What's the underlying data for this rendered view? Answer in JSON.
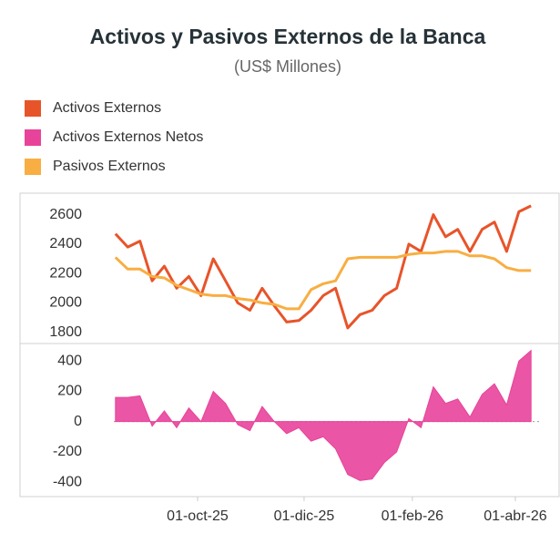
{
  "chart_data": {
    "type": "line",
    "title": "Activos y Pasivos Externos de la Banca",
    "subtitle": "(US$ Millones)",
    "x": [
      "2025-08-15",
      "2025-08-22",
      "2025-08-29",
      "2025-09-05",
      "2025-09-12",
      "2025-09-19",
      "2025-09-26",
      "2025-10-03",
      "2025-10-10",
      "2025-10-17",
      "2025-10-24",
      "2025-10-31",
      "2025-11-07",
      "2025-11-14",
      "2025-11-21",
      "2025-11-28",
      "2025-12-05",
      "2025-12-12",
      "2025-12-19",
      "2025-12-26",
      "2026-01-02",
      "2026-01-09",
      "2026-01-16",
      "2026-01-23",
      "2026-01-30",
      "2026-02-06",
      "2026-02-13",
      "2026-02-20",
      "2026-02-27",
      "2026-03-06",
      "2026-03-13",
      "2026-03-20",
      "2026-03-27",
      "2026-04-03",
      "2026-04-10"
    ],
    "series": [
      {
        "name": "Activos Externos",
        "color": "#e8542a",
        "values": [
          2470,
          2380,
          2420,
          2150,
          2250,
          2100,
          2180,
          2050,
          2300,
          2150,
          2000,
          1950,
          2100,
          1980,
          1870,
          1880,
          1950,
          2050,
          2100,
          1830,
          1920,
          1950,
          2050,
          2100,
          2400,
          2350,
          2600,
          2450,
          2500,
          2350,
          2500,
          2550,
          2350,
          2620,
          2660
        ]
      },
      {
        "name": "Activos Externos Netos",
        "color": "#e8439b",
        "axis": "y2",
        "values": [
          160,
          160,
          170,
          -30,
          70,
          -40,
          90,
          0,
          200,
          120,
          -20,
          -60,
          100,
          0,
          -80,
          -40,
          -130,
          -100,
          -180,
          -350,
          -390,
          -380,
          -270,
          -200,
          20,
          -40,
          230,
          120,
          150,
          30,
          180,
          250,
          110,
          400,
          470
        ]
      },
      {
        "name": "Pasivos Externos",
        "color": "#f8ae42",
        "values": [
          2310,
          2230,
          2230,
          2180,
          2170,
          2120,
          2090,
          2060,
          2050,
          2050,
          2030,
          2020,
          2000,
          1990,
          1960,
          1960,
          2090,
          2130,
          2150,
          2300,
          2310,
          2310,
          2310,
          2310,
          2330,
          2340,
          2340,
          2350,
          2350,
          2320,
          2320,
          2300,
          2240,
          2220,
          2220
        ]
      }
    ],
    "xlim": [
      "2025-08-01",
      "2026-04-25"
    ],
    "xticks": [
      {
        "value": "2025-10-01",
        "label": "01-oct-25"
      },
      {
        "value": "2025-12-01",
        "label": "01-dic-25"
      },
      {
        "value": "2026-02-01",
        "label": "01-feb-26"
      },
      {
        "value": "2026-04-01",
        "label": "01-abr-26"
      }
    ],
    "ylim": [
      1730,
      2740
    ],
    "yticks": [
      1800,
      2000,
      2200,
      2400,
      2600
    ],
    "y2lim": [
      -490,
      510
    ],
    "y2ticks": [
      -400,
      -200,
      0,
      200,
      400
    ]
  }
}
